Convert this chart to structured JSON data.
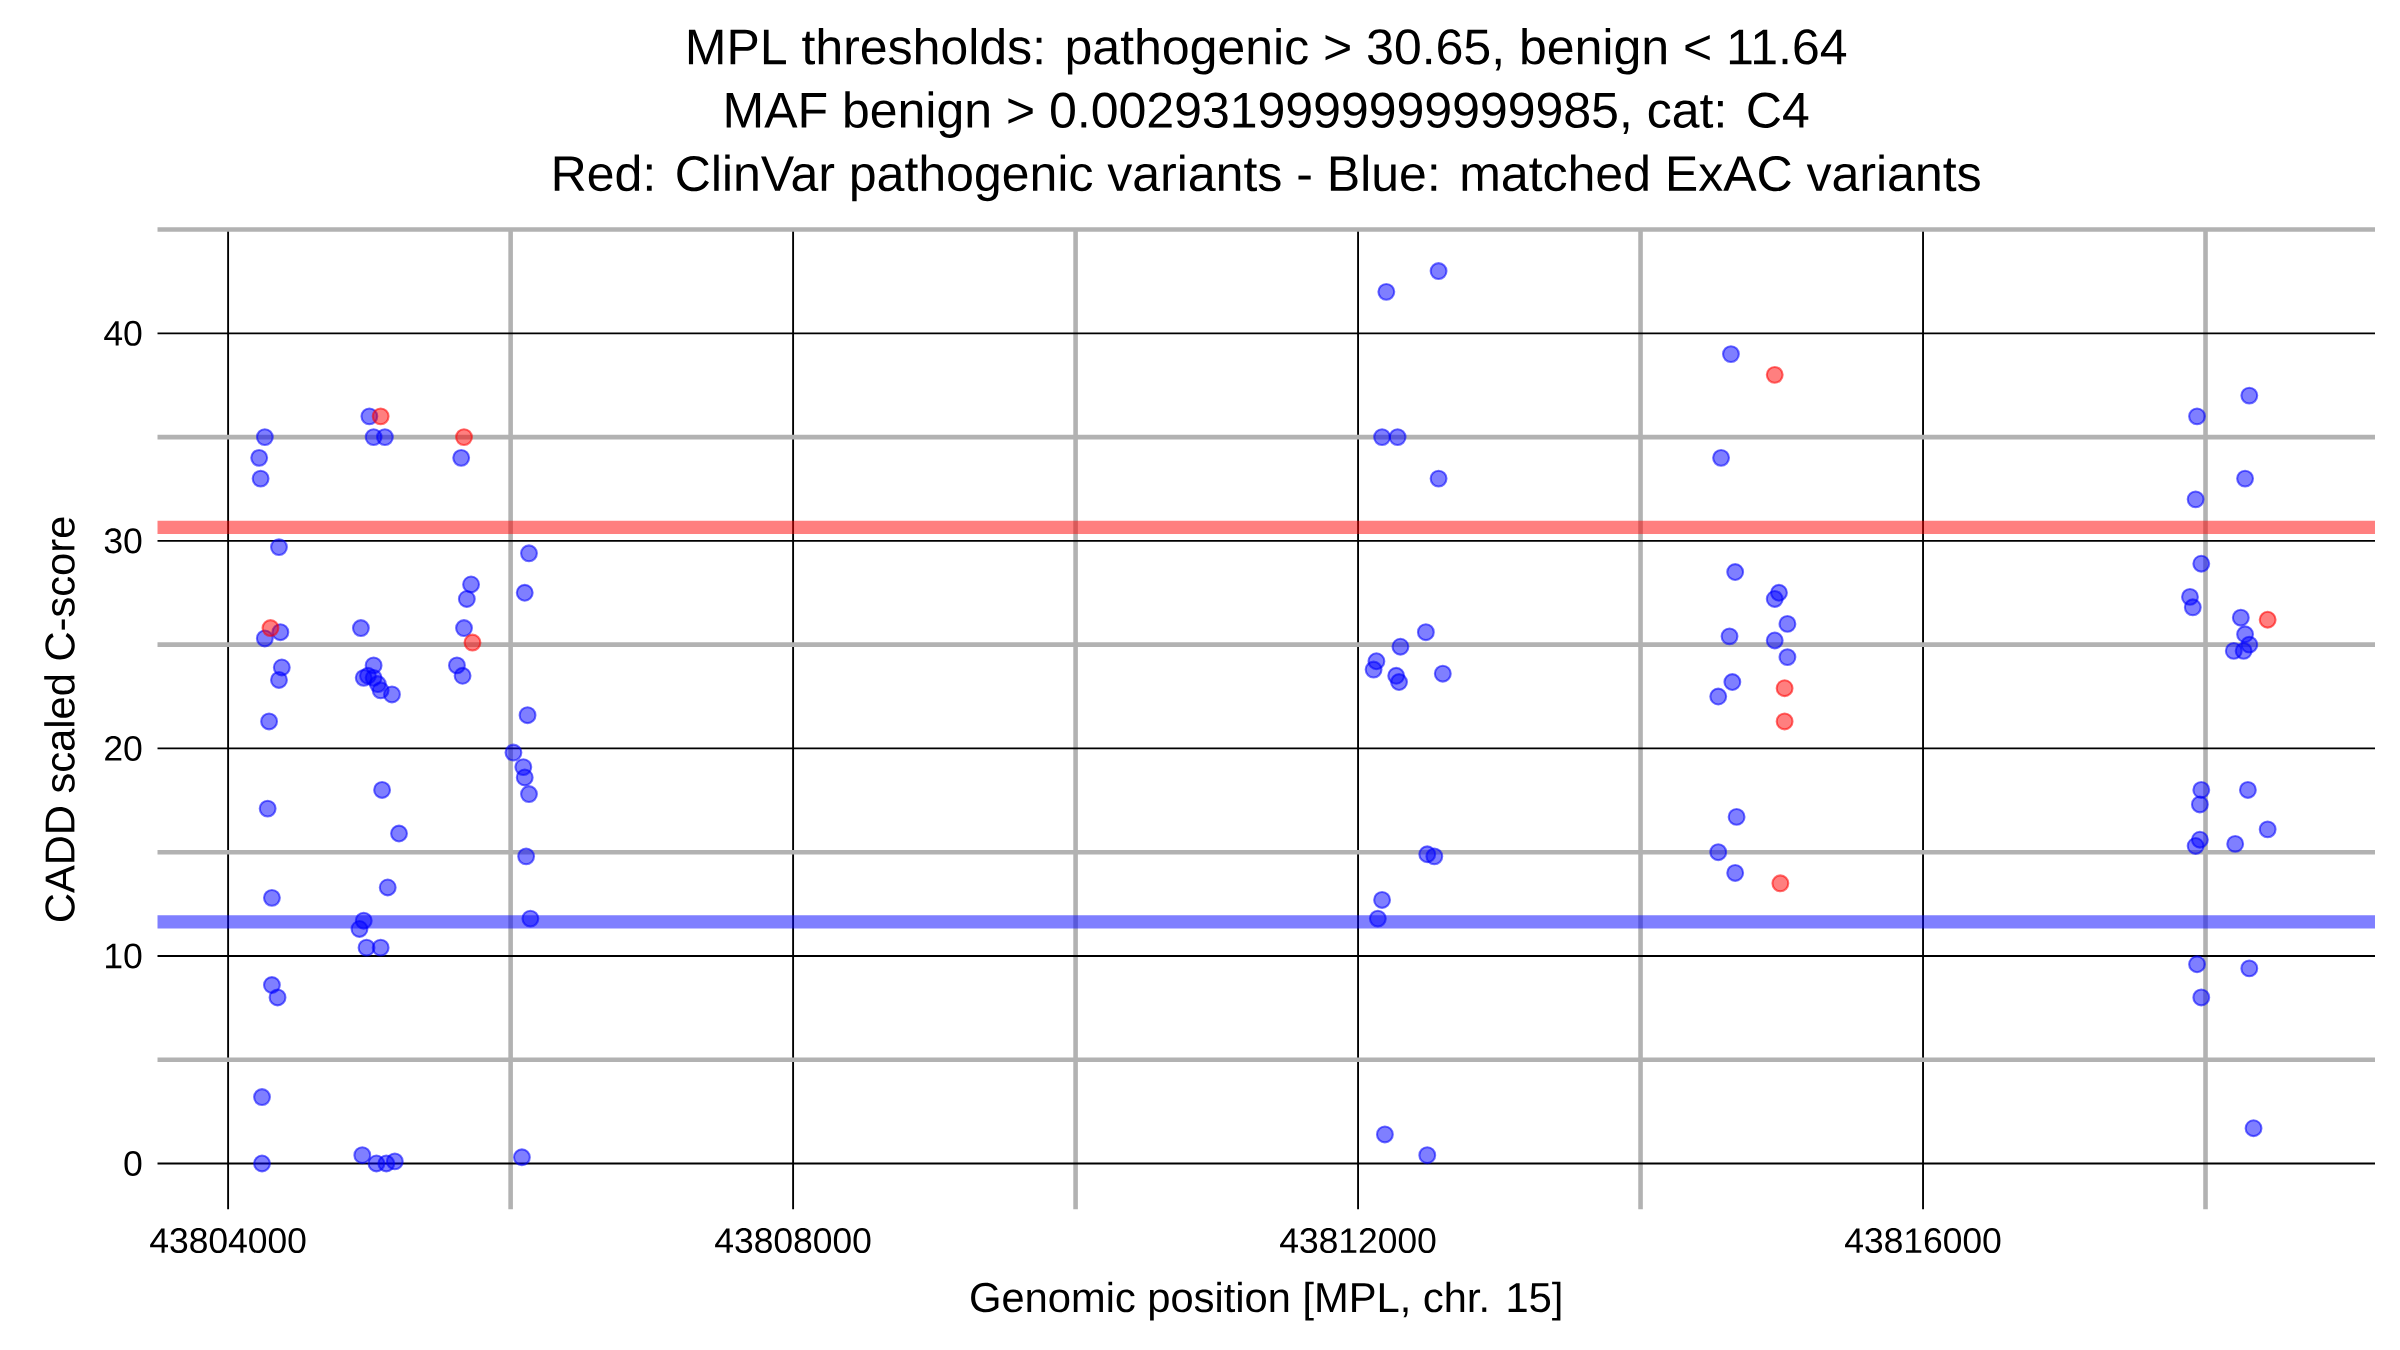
{
  "chart_data": {
    "type": "scatter",
    "title": "MPL thresholds: pathogenic > 30.65, benign < 11.64",
    "subtitle": "MAF benign > 0.0029319999999999985, cat: C4",
    "annotations": [
      "Red: ClinVar pathogenic variants - Blue: matched ExAC variants"
    ],
    "xlabel": "Genomic position [MPL, chr. 15]",
    "ylabel": "CADD scaled C-score",
    "xlim": [
      43803500,
      43819200
    ],
    "ylim": [
      -2.2,
      45
    ],
    "xticks": [
      43804000,
      {
        "value": 43806000,
        "label": null
      },
      43808000,
      {
        "value": 43810000,
        "label": null
      },
      43812000,
      {
        "value": 43814000,
        "label": null
      },
      43816000,
      {
        "value": 43818000,
        "label": null
      }
    ],
    "yticks": [
      0,
      {
        "value": 5,
        "label": null
      },
      10,
      {
        "value": 15,
        "label": null
      },
      20,
      {
        "value": 25,
        "label": null
      },
      30,
      {
        "value": 35,
        "label": null
      },
      40,
      {
        "value": 45,
        "label": null
      }
    ],
    "grid": true,
    "marker": "circle",
    "ref_lines": [
      {
        "axis": "y",
        "value": 30.65,
        "color": "#ff0000"
      },
      {
        "axis": "y",
        "value": 11.64,
        "color": "#0000ff"
      }
    ],
    "series": [
      {
        "color": "#0000ff",
        "x": [
          43804260,
          43804220,
          43804230,
          43804360,
          43804260,
          43804370,
          43804380,
          43804360,
          43804290,
          43804280,
          43804310,
          43804310,
          43804350,
          43804240,
          43804240,
          43805000,
          43805030,
          43805110,
          43804940,
          43805030,
          43804960,
          43804990,
          43805030,
          43805060,
          43805080,
          43805160,
          43805090,
          43805210,
          43805130,
          43804960,
          43804930,
          43804980,
          43805080,
          43804950,
          43805050,
          43805120,
          43805180,
          43805650,
          43805720,
          43805690,
          43805670,
          43805620,
          43805660,
          43806130,
          43806100,
          43806120,
          43806020,
          43806090,
          43806100,
          43806130,
          43806110,
          43806140,
          43806080,
          43812200,
          43812570,
          43812170,
          43812280,
          43812570,
          43812480,
          43812300,
          43812130,
          43812110,
          43812270,
          43812290,
          43812600,
          43812490,
          43812540,
          43812170,
          43812140,
          43812190,
          43812490,
          43814640,
          43814570,
          43814670,
          43814980,
          43814950,
          43815040,
          43814630,
          43814950,
          43815040,
          43814650,
          43814550,
          43814680,
          43814550,
          43814670,
          43818310,
          43817940,
          43818280,
          43817930,
          43817970,
          43817890,
          43817910,
          43818250,
          43818280,
          43818310,
          43818200,
          43818270,
          43817970,
          43817960,
          43818300,
          43818440,
          43817960,
          43817930,
          43818210,
          43817940,
          43818310,
          43817970,
          43818340
        ],
        "values": [
          35,
          34,
          33,
          29.7,
          25.3,
          25.6,
          23.9,
          23.3,
          21.3,
          17.1,
          12.8,
          8.6,
          8.0,
          3.2,
          0,
          36,
          35,
          35,
          25.8,
          24.0,
          23.4,
          23.5,
          23.4,
          23.1,
          22.8,
          22.6,
          18.0,
          15.9,
          13.3,
          11.7,
          11.3,
          10.4,
          10.4,
          0.4,
          0,
          0,
          0.1,
          34,
          27.9,
          27.2,
          25.8,
          24.0,
          23.5,
          29.4,
          27.5,
          21.6,
          19.8,
          19.1,
          18.6,
          17.8,
          14.8,
          11.8,
          0.3,
          42,
          43,
          35,
          35,
          33,
          25.6,
          24.9,
          24.2,
          23.8,
          23.5,
          23.2,
          23.6,
          14.9,
          14.8,
          12.7,
          11.8,
          1.4,
          0.4,
          39,
          34,
          28.5,
          27.5,
          27.2,
          26.0,
          25.4,
          25.2,
          24.4,
          23.2,
          22.5,
          16.7,
          15.0,
          14.0,
          37,
          36,
          33,
          32,
          28.9,
          27.3,
          26.8,
          26.3,
          25.5,
          25.0,
          24.7,
          24.7,
          18.0,
          17.3,
          18.0,
          16.1,
          15.6,
          15.3,
          15.4,
          9.6,
          9.4,
          8.0,
          1.7
        ]
      },
      {
        "color": "#ff0000",
        "x": [
          43804300,
          43805080,
          43805670,
          43805730,
          43814950,
          43815020,
          43815020,
          43814990,
          43818440
        ],
        "values": [
          25.8,
          36,
          35,
          25.1,
          38,
          22.9,
          21.3,
          13.5,
          26.2
        ]
      }
    ]
  }
}
